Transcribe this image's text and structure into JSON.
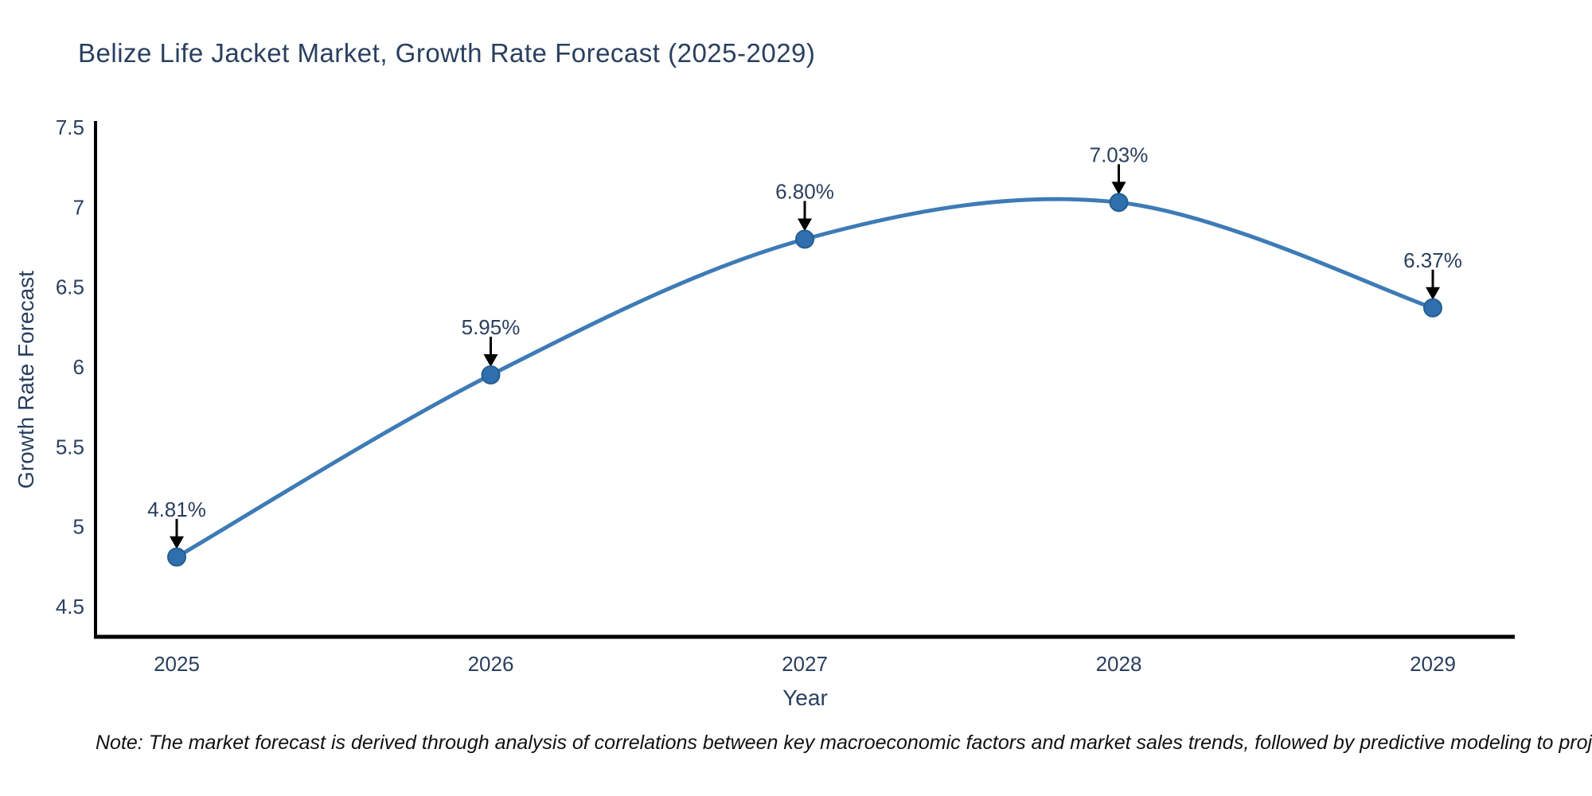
{
  "title": "Belize Life Jacket Market, Growth Rate Forecast (2025-2029)",
  "note": "Note: The market forecast is derived through analysis of correlations between key macroeconomic factors and market sales trends, followed by predictive modeling to project future sales",
  "chart_data": {
    "type": "line",
    "line_shape": "spline",
    "title": "Belize Life Jacket Market, Growth Rate Forecast (2025-2029)",
    "xlabel": "Year",
    "ylabel": "Growth Rate Forecast",
    "x": [
      2025,
      2026,
      2027,
      2028,
      2029
    ],
    "categories": [
      "2025",
      "2026",
      "2027",
      "2028",
      "2029"
    ],
    "series": [
      {
        "name": "Growth Rate Forecast",
        "values": [
          4.81,
          5.95,
          6.8,
          7.03,
          6.37
        ]
      }
    ],
    "point_labels": [
      "4.81%",
      "5.95%",
      "6.80%",
      "7.03%",
      "6.37%"
    ],
    "yticks": [
      4.5,
      5,
      5.5,
      6,
      6.5,
      7,
      7.5
    ],
    "ytick_labels": [
      "4.5",
      "5",
      "5.5",
      "6",
      "6.5",
      "7",
      "7.5"
    ],
    "ylim": [
      4.32,
      7.52
    ],
    "grid": false,
    "legend_position": "none",
    "colors": {
      "line": "#3e7bb6",
      "marker": "#2f6fae",
      "marker_edge": "#235f8f",
      "arrow": "#000000",
      "axis_line": "#000000",
      "text": "#2a3f5f",
      "note_text": "#111111",
      "background": "#ffffff"
    }
  }
}
